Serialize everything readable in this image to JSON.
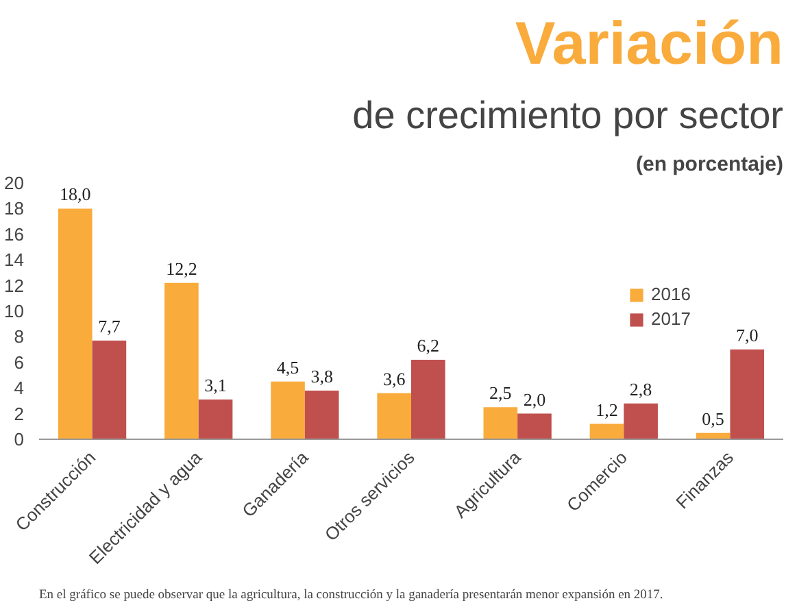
{
  "chart_data": {
    "type": "bar",
    "title": "Variación",
    "subtitle": "de crecimiento por sector",
    "ylabel": "(en porcentaje)",
    "categories": [
      "Construcción",
      "Electricidad y agua",
      "Ganadería",
      "Otros servicios",
      "Agricultura",
      "Comercio",
      "Finanzas"
    ],
    "series": [
      {
        "name": "2016",
        "color": "#f9ab3c",
        "values": [
          18.0,
          12.2,
          4.5,
          3.6,
          2.5,
          1.2,
          0.5
        ],
        "value_labels": [
          "18,0",
          "12,2",
          "4,5",
          "3,6",
          "2,5",
          "1,2",
          "0,5"
        ]
      },
      {
        "name": "2017",
        "color": "#c0504d",
        "values": [
          7.7,
          3.1,
          3.8,
          6.2,
          2.0,
          2.8,
          7.0
        ],
        "value_labels": [
          "7,7",
          "3,1",
          "3,8",
          "6,2",
          "2,0",
          "2,8",
          "7,0"
        ]
      }
    ],
    "ylim": [
      0,
      20
    ],
    "yticks": [
      0,
      2,
      4,
      6,
      8,
      10,
      12,
      14,
      16,
      18,
      20
    ],
    "grid": false,
    "legend": "right",
    "annotations": [
      "En el gráfico se puede observar que la agricultura, la construcción y la ganadería presentarán menor expansión en 2017."
    ]
  }
}
